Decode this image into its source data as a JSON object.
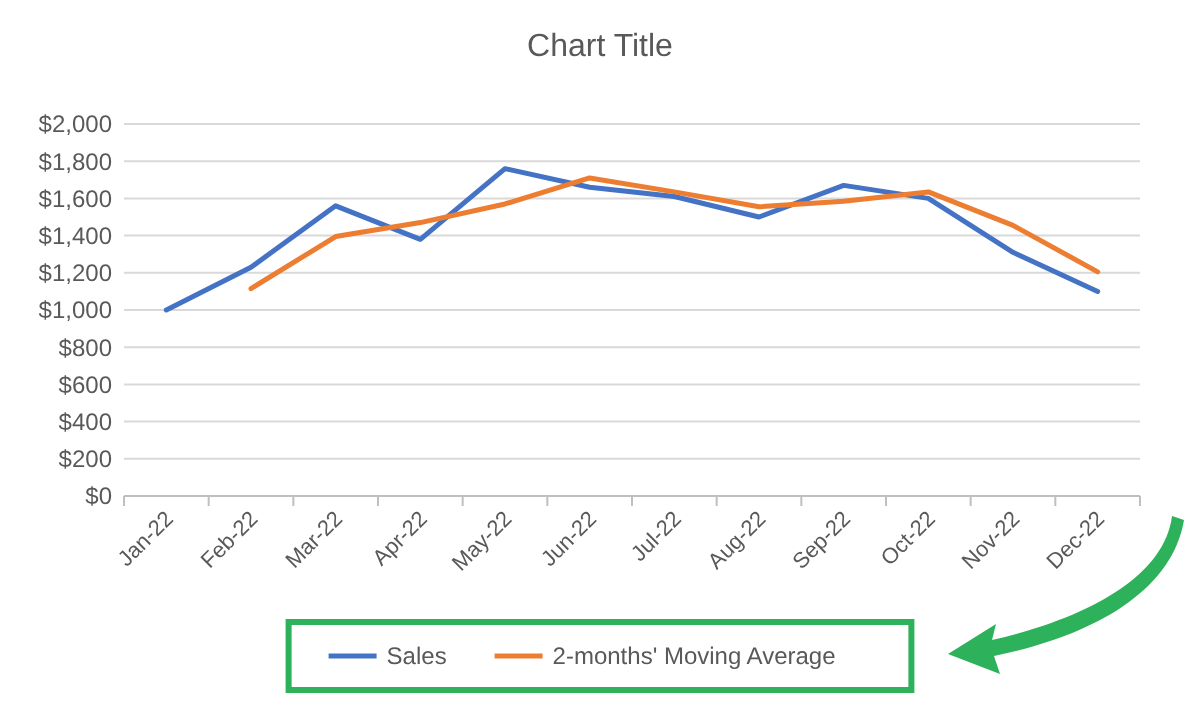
{
  "chart_data": {
    "type": "line",
    "title": "Chart Title",
    "categories": [
      "Jan-22",
      "Feb-22",
      "Mar-22",
      "Apr-22",
      "May-22",
      "Jun-22",
      "Jul-22",
      "Aug-22",
      "Sep-22",
      "Oct-22",
      "Nov-22",
      "Dec-22"
    ],
    "series": [
      {
        "name": "Sales",
        "color": "#4472c4",
        "values": [
          1000,
          1230,
          1560,
          1380,
          1760,
          1660,
          1610,
          1500,
          1670,
          1600,
          1310,
          1100
        ]
      },
      {
        "name": "2-months' Moving Average",
        "color": "#ed7d31",
        "values": [
          null,
          1115,
          1395,
          1470,
          1570,
          1710,
          1635,
          1555,
          1585,
          1635,
          1455,
          1205
        ]
      }
    ],
    "ylim": [
      0,
      2000
    ],
    "yticks": [
      {
        "value": 0,
        "label": "$0"
      },
      {
        "value": 200,
        "label": "$200"
      },
      {
        "value": 400,
        "label": "$400"
      },
      {
        "value": 600,
        "label": "$600"
      },
      {
        "value": 800,
        "label": "$800"
      },
      {
        "value": 1000,
        "label": "$1,000"
      },
      {
        "value": 1200,
        "label": "$1,200"
      },
      {
        "value": 1400,
        "label": "$1,400"
      },
      {
        "value": 1600,
        "label": "$1,600"
      },
      {
        "value": 1800,
        "label": "$1,800"
      },
      {
        "value": 2000,
        "label": "$2,000"
      }
    ],
    "grid": "y",
    "legend": "bottom",
    "marker": "none",
    "line_style": "solid"
  }
}
